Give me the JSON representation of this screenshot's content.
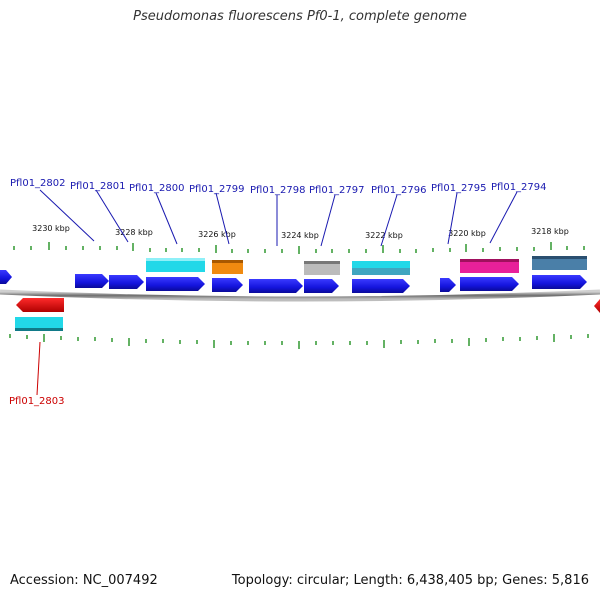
{
  "title": "Pseudomonas fluorescens Pf0-1, complete genome",
  "accession": "Accession: NC_007492",
  "summary": "Topology: circular; Length: 6,438,405 bp; Genes: 5,816",
  "colors": {
    "cds": "#1a1aee",
    "cds_reverse": "#e80000",
    "label_forward": "#1a1ab0",
    "label_reverse": "#cc0000",
    "tick": "#118811",
    "backbone": "#888888",
    "cyan": "#22d8e8",
    "orange": "#f08a10",
    "gray": "#bbbbbb",
    "magenta": "#e8209a",
    "steel": "#4a7fa8",
    "cyan_steel": "#3fa6c0"
  },
  "ticks": [
    {
      "label": "3230 kbp"
    },
    {
      "label": "3228 kbp"
    },
    {
      "label": "3226 kbp"
    },
    {
      "label": "3224 kbp"
    },
    {
      "label": "3222 kbp"
    },
    {
      "label": "3220 kbp"
    },
    {
      "label": "3218 kbp"
    }
  ],
  "genes": [
    {
      "label": "Pfl01_2802"
    },
    {
      "label": "Pfl01_2801"
    },
    {
      "label": "Pfl01_2800"
    },
    {
      "label": "Pfl01_2799"
    },
    {
      "label": "Pfl01_2798"
    },
    {
      "label": "Pfl01_2797"
    },
    {
      "label": "Pfl01_2796"
    },
    {
      "label": "Pfl01_2795"
    },
    {
      "label": "Pfl01_2794"
    },
    {
      "label": "Pfl01_2803"
    }
  ]
}
